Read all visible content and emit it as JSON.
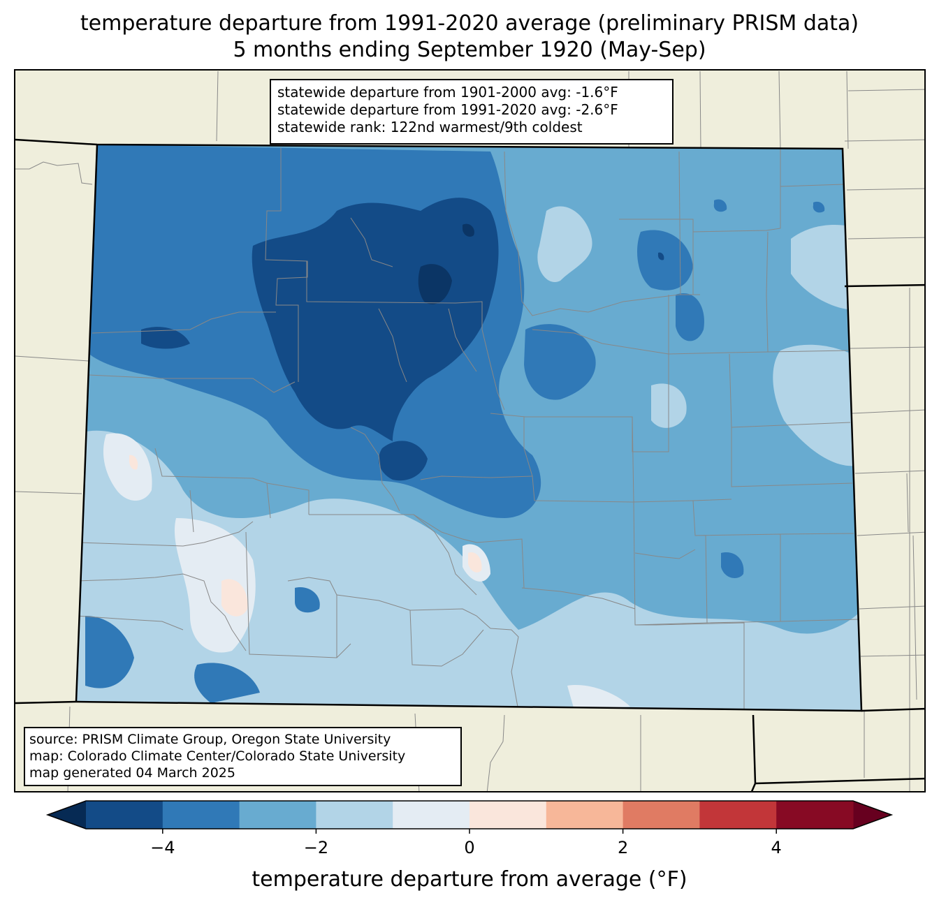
{
  "title": {
    "line1": "temperature departure from 1991-2020 average (preliminary PRISM data)",
    "line2": "5 months ending September 1920 (May-Sep)"
  },
  "stats": {
    "line1": "statewide departure from 1901-2000 avg: -1.6°F",
    "line2": "statewide departure from 1991-2020 avg: -2.6°F",
    "line3": "statewide rank: 122nd warmest/9th coldest"
  },
  "credits": {
    "line1": "source: PRISM Climate Group, Oregon State University",
    "line2": "map: Colorado Climate Center/Colorado State University",
    "line3": "map generated 04 March 2025"
  },
  "colorbar": {
    "label": "temperature departure from average (°F)",
    "min": -5,
    "max": 5,
    "step": 1,
    "ticks": [
      -4,
      -2,
      0,
      2,
      4
    ],
    "tick_labels": [
      "−4",
      "−2",
      "0",
      "2",
      "4"
    ],
    "colors": [
      "#134b87",
      "#3079b7",
      "#68abd0",
      "#b2d4e7",
      "#e4ecf3",
      "#fae6dc",
      "#f7b799",
      "#e07b63",
      "#c23639",
      "#870a24"
    ],
    "under_color": "#062a54",
    "over_color": "#67001f"
  },
  "map": {
    "background_color": "#efeedc",
    "state_outline_color": "#000000",
    "county_line_color": "#888888"
  }
}
